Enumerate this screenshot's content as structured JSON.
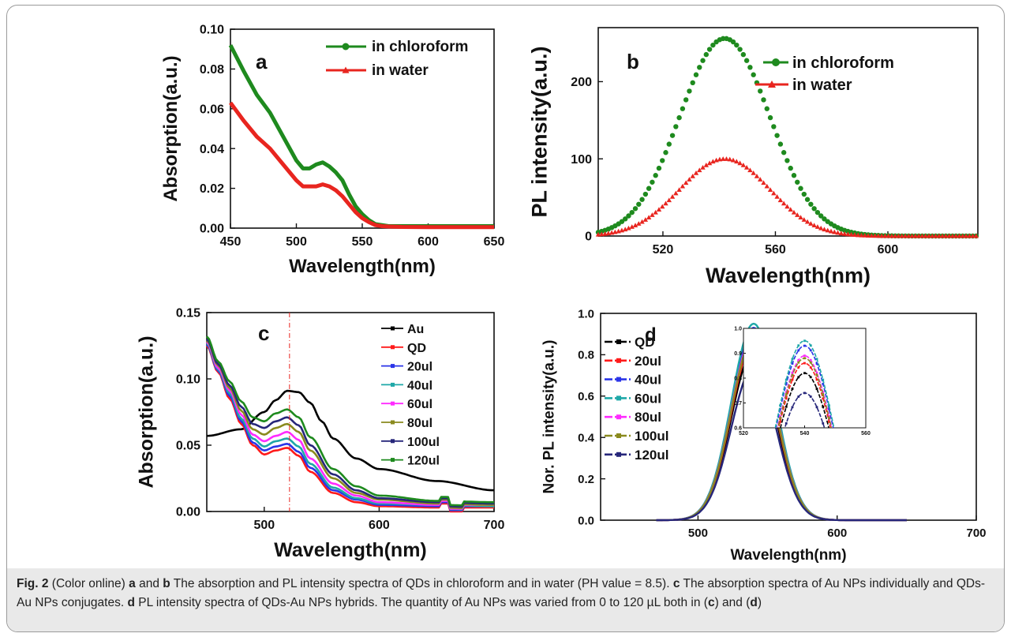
{
  "chart_data": [
    {
      "type": "line",
      "panel_label": "a",
      "xlabel": "Wavelength(nm)",
      "ylabel": "Absorption(a.u.)",
      "xlim": [
        450,
        650
      ],
      "ylim": [
        0,
        0.1
      ],
      "xticks": [
        "450",
        "500",
        "550",
        "600",
        "650"
      ],
      "yticks": [
        "0.00",
        "0.02",
        "0.04",
        "0.06",
        "0.08",
        "0.10"
      ],
      "legend_position": "top-right",
      "series": [
        {
          "name": "in chloroform",
          "color": "#1e8a1e",
          "x": [
            450,
            460,
            470,
            480,
            490,
            500,
            505,
            510,
            515,
            520,
            525,
            530,
            535,
            540,
            545,
            550,
            555,
            560,
            565,
            570,
            580,
            600,
            650
          ],
          "y": [
            0.092,
            0.079,
            0.067,
            0.058,
            0.046,
            0.034,
            0.03,
            0.03,
            0.032,
            0.033,
            0.031,
            0.028,
            0.024,
            0.017,
            0.011,
            0.007,
            0.004,
            0.002,
            0.0015,
            0.001,
            0.001,
            0.001,
            0.001
          ]
        },
        {
          "name": "in water",
          "color": "#e8251f",
          "x": [
            450,
            460,
            470,
            480,
            490,
            500,
            505,
            510,
            515,
            520,
            525,
            530,
            535,
            540,
            545,
            550,
            555,
            560,
            565,
            570,
            580,
            600,
            650
          ],
          "y": [
            0.063,
            0.054,
            0.046,
            0.04,
            0.032,
            0.024,
            0.021,
            0.021,
            0.021,
            0.022,
            0.021,
            0.019,
            0.016,
            0.012,
            0.008,
            0.005,
            0.003,
            0.0015,
            0.001,
            0.0008,
            0.0006,
            0.0005,
            0.0005
          ]
        }
      ]
    },
    {
      "type": "scatter",
      "panel_label": "b",
      "xlabel": "Wavelength(nm)",
      "ylabel": "PL intensity(a.u.)",
      "xlim": [
        497,
        632
      ],
      "ylim": [
        0,
        270
      ],
      "xticks": [
        "520",
        "560",
        "600"
      ],
      "yticks": [
        "0",
        "100",
        "200"
      ],
      "legend_position": "top-right",
      "series": [
        {
          "name": "in chloroform",
          "color": "#1e8a1e",
          "peak": 256,
          "center": 542,
          "sigma": 16
        },
        {
          "name": "in water",
          "color": "#e8251f",
          "peak": 100,
          "center": 542,
          "sigma": 16
        }
      ]
    },
    {
      "type": "line",
      "panel_label": "c",
      "xlabel": "Wavelength(nm)",
      "ylabel": "Absorption(a.u.)",
      "xlim": [
        450,
        700
      ],
      "ylim": [
        0,
        0.15
      ],
      "xticks": [
        "500",
        "600",
        "700"
      ],
      "yticks": [
        "0.00",
        "0.05",
        "0.10",
        "0.15"
      ],
      "reference_line_x": 522,
      "legend_position": "top-right",
      "series": [
        {
          "name": "Au",
          "color": "#000000",
          "x": [
            450,
            480,
            500,
            510,
            520,
            530,
            540,
            550,
            560,
            580,
            600,
            650,
            700
          ],
          "y": [
            0.057,
            0.062,
            0.075,
            0.084,
            0.091,
            0.09,
            0.082,
            0.068,
            0.055,
            0.04,
            0.032,
            0.023,
            0.016
          ]
        },
        {
          "name": "QD",
          "color": "#ff1a1a",
          "x": [
            450,
            460,
            470,
            480,
            490,
            500,
            510,
            520,
            530,
            540,
            560,
            580,
            600,
            650,
            700
          ],
          "y": [
            0.125,
            0.105,
            0.085,
            0.066,
            0.05,
            0.043,
            0.046,
            0.048,
            0.042,
            0.03,
            0.014,
            0.007,
            0.004,
            0.003,
            0.003
          ]
        },
        {
          "name": "20ul",
          "color": "#2b35e8",
          "x": [
            450,
            460,
            470,
            480,
            490,
            500,
            510,
            520,
            530,
            540,
            560,
            580,
            600,
            650,
            700
          ],
          "y": [
            0.126,
            0.106,
            0.087,
            0.068,
            0.052,
            0.046,
            0.049,
            0.051,
            0.045,
            0.033,
            0.016,
            0.009,
            0.005,
            0.004,
            0.004
          ]
        },
        {
          "name": "40ul",
          "color": "#1fa8a8",
          "x": [
            450,
            460,
            470,
            480,
            490,
            500,
            510,
            520,
            530,
            540,
            560,
            580,
            600,
            650,
            700
          ],
          "y": [
            0.127,
            0.107,
            0.089,
            0.07,
            0.055,
            0.049,
            0.053,
            0.055,
            0.049,
            0.036,
            0.018,
            0.01,
            0.006,
            0.005,
            0.004
          ]
        },
        {
          "name": "60ul",
          "color": "#ff2bff",
          "x": [
            450,
            460,
            470,
            480,
            490,
            500,
            510,
            520,
            530,
            540,
            560,
            580,
            600,
            650,
            700
          ],
          "y": [
            0.128,
            0.108,
            0.091,
            0.073,
            0.058,
            0.053,
            0.057,
            0.06,
            0.054,
            0.04,
            0.021,
            0.012,
            0.007,
            0.005,
            0.005
          ]
        },
        {
          "name": "80ul",
          "color": "#8a8a1e",
          "x": [
            450,
            460,
            470,
            480,
            490,
            500,
            510,
            520,
            530,
            540,
            560,
            580,
            600,
            650,
            700
          ],
          "y": [
            0.129,
            0.11,
            0.093,
            0.076,
            0.062,
            0.058,
            0.063,
            0.066,
            0.06,
            0.046,
            0.025,
            0.014,
            0.009,
            0.006,
            0.005
          ]
        },
        {
          "name": "100ul",
          "color": "#26267a",
          "x": [
            450,
            460,
            470,
            480,
            490,
            500,
            510,
            520,
            530,
            540,
            560,
            580,
            600,
            650,
            700
          ],
          "y": [
            0.13,
            0.111,
            0.095,
            0.079,
            0.066,
            0.063,
            0.068,
            0.071,
            0.065,
            0.05,
            0.028,
            0.016,
            0.01,
            0.007,
            0.006
          ]
        },
        {
          "name": "120ul",
          "color": "#1e8a1e",
          "x": [
            450,
            460,
            470,
            480,
            490,
            500,
            510,
            520,
            530,
            540,
            560,
            580,
            600,
            650,
            700
          ],
          "y": [
            0.132,
            0.113,
            0.098,
            0.083,
            0.071,
            0.068,
            0.074,
            0.077,
            0.071,
            0.056,
            0.032,
            0.019,
            0.012,
            0.008,
            0.007
          ]
        }
      ]
    },
    {
      "type": "line",
      "panel_label": "d",
      "xlabel": "Wavelength(nm)",
      "ylabel": "Nor. PL intensity(a.u.)",
      "xlim": [
        430,
        700
      ],
      "ylim": [
        0,
        1.0
      ],
      "xticks": [
        "500",
        "600",
        "700"
      ],
      "yticks": [
        "0.0",
        "0.2",
        "0.4",
        "0.6",
        "0.8",
        "1.0"
      ],
      "legend_position": "top-left",
      "series": [
        {
          "name": "QD",
          "color": "#000000",
          "peak": 0.82,
          "center": 540,
          "sigma": 16
        },
        {
          "name": "20ul",
          "color": "#ff1a1a",
          "peak": 0.86,
          "center": 540,
          "sigma": 16
        },
        {
          "name": "40ul",
          "color": "#2b35e8",
          "peak": 0.93,
          "center": 540,
          "sigma": 16
        },
        {
          "name": "60ul",
          "color": "#1fa8a8",
          "peak": 0.95,
          "center": 540,
          "sigma": 16
        },
        {
          "name": "80ul",
          "color": "#ff2bff",
          "peak": 0.89,
          "center": 540,
          "sigma": 16
        },
        {
          "name": "100ul",
          "color": "#8a8a1e",
          "peak": 0.88,
          "center": 540,
          "sigma": 16
        },
        {
          "name": "120ul",
          "color": "#26267a",
          "peak": 0.74,
          "center": 540,
          "sigma": 16
        }
      ],
      "inset": {
        "xlim": [
          520,
          560
        ],
        "ylim": [
          0.6,
          1.0
        ],
        "xticks": [
          "520",
          "540",
          "560"
        ],
        "yticks": [
          "0.6",
          "0.7",
          "0.8",
          "0.9",
          "1.0"
        ]
      }
    }
  ],
  "caption": {
    "fig_label": "Fig. 2",
    "segments": [
      {
        "t": " (Color online) ",
        "b": false
      },
      {
        "t": "a",
        "b": true
      },
      {
        "t": " and ",
        "b": false
      },
      {
        "t": "b",
        "b": true
      },
      {
        "t": " The absorption and PL intensity spectra of QDs in chloroform and in water (PH value = 8.5). ",
        "b": false
      },
      {
        "t": "c",
        "b": true
      },
      {
        "t": " The absorption spectra of Au NPs individually and QDs-Au NPs conjugates. ",
        "b": false
      },
      {
        "t": "d",
        "b": true
      },
      {
        "t": " PL intensity spectra of QDs-Au NPs hybrids. The quantity of Au NPs was varied from 0 to 120 µL both in (",
        "b": false
      },
      {
        "t": "c",
        "b": true
      },
      {
        "t": ") and (",
        "b": false
      },
      {
        "t": "d",
        "b": true
      },
      {
        "t": ")",
        "b": false
      }
    ]
  }
}
